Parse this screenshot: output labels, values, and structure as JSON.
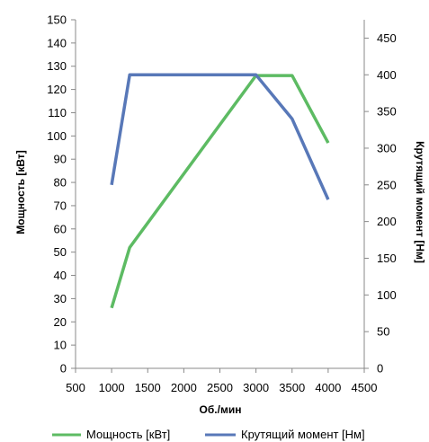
{
  "chart_data": {
    "type": "line",
    "xlabel": "Об./мин",
    "ylabel_left": "Мощность [кВт]",
    "ylabel_right": "Крутящий момент [Нм]",
    "xlim": [
      500,
      4500
    ],
    "ylim_left": [
      0,
      150
    ],
    "ylim_right": [
      0,
      475
    ],
    "x_ticks": [
      "500",
      "1000",
      "1500",
      "2000",
      "2500",
      "3000",
      "3500",
      "4000",
      "4500"
    ],
    "y_left_ticks": [
      "0",
      "10",
      "20",
      "30",
      "40",
      "50",
      "60",
      "70",
      "80",
      "90",
      "100",
      "110",
      "120",
      "130",
      "140",
      "150"
    ],
    "y_right_ticks": [
      "0",
      "50",
      "100",
      "150",
      "200",
      "250",
      "300",
      "350",
      "400",
      "450"
    ],
    "grid": false,
    "legend_position": "bottom",
    "series": [
      {
        "name": "Мощность [кВт]",
        "axis": "left",
        "color": "#5dbb63",
        "x": [
          1000,
          1250,
          3000,
          3500,
          4000
        ],
        "y": [
          26,
          52,
          126,
          126,
          97
        ]
      },
      {
        "name": "Крутящий момент [Нм]",
        "axis": "right",
        "color": "#5878b8",
        "x": [
          1000,
          1250,
          3000,
          3500,
          4000
        ],
        "y": [
          250,
          400,
          400,
          340,
          230
        ]
      }
    ]
  }
}
